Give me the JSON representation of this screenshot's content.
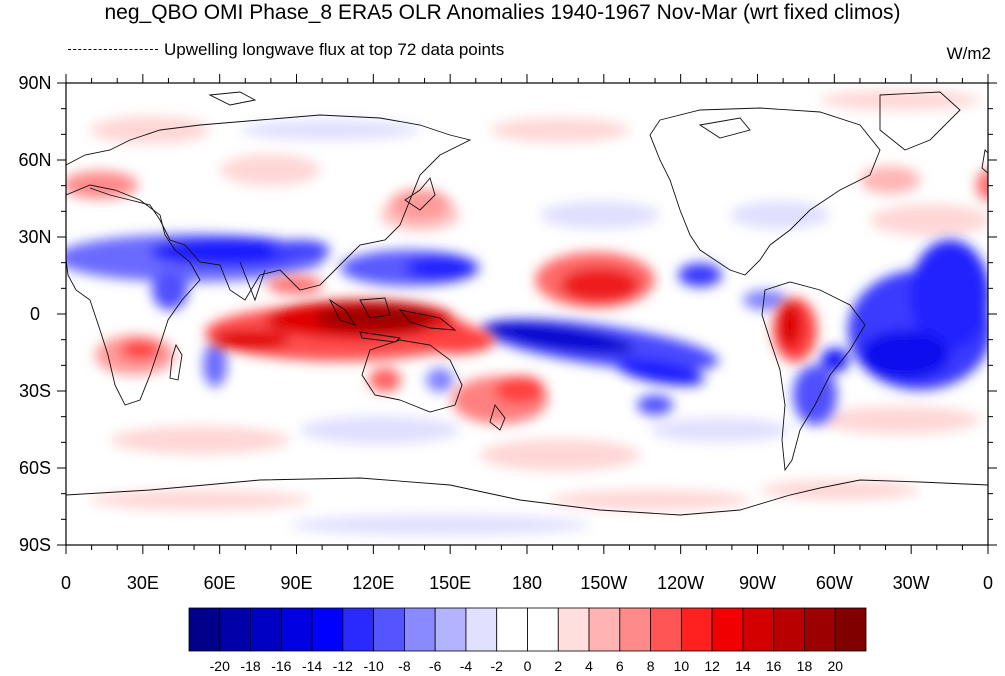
{
  "title": "neg_QBO OMI Phase_8 ERA5 OLR Anomalies 1940-1967 Nov-Mar (wrt fixed climos)",
  "subtitle": "Upwelling longwave flux at top    72 data points",
  "units": "W/m2",
  "lat_labels": [
    "90N",
    "60N",
    "30N",
    "0",
    "30S",
    "60S",
    "90S"
  ],
  "lon_labels": [
    "0",
    "30E",
    "60E",
    "90E",
    "120E",
    "150E",
    "180",
    "150W",
    "120W",
    "90W",
    "60W",
    "30W",
    "0"
  ],
  "colorbar": {
    "labels": [
      "-20",
      "-18",
      "-16",
      "-14",
      "-12",
      "-10",
      "-8",
      "-6",
      "-4",
      "-2",
      "0",
      "2",
      "4",
      "6",
      "8",
      "10",
      "12",
      "14",
      "16",
      "18",
      "20"
    ],
    "colors": [
      "#00008b",
      "#0000a8",
      "#0000c4",
      "#0000e1",
      "#0000ff",
      "#2a2aff",
      "#5555ff",
      "#8a8aff",
      "#b3b3ff",
      "#e1e1ff",
      "#ffffff",
      "#ffffff",
      "#ffdede",
      "#ffb3b3",
      "#ff8a8a",
      "#ff5555",
      "#ff2020",
      "#f00000",
      "#d40000",
      "#b80000",
      "#9c0000",
      "#800000"
    ]
  },
  "chart_data": {
    "type": "heatmap",
    "variable": "OLR anomaly",
    "units": "W/m2",
    "lon_range": [
      0,
      360
    ],
    "lat_range": [
      -90,
      90
    ],
    "value_range": [
      -20,
      20
    ],
    "anomalies": [
      {
        "sign": "positive",
        "lon": [
          60,
          175
        ],
        "lat": [
          -15,
          10
        ],
        "peak": 20
      },
      {
        "sign": "positive",
        "lon": [
          95,
          145
        ],
        "lat": [
          -10,
          8
        ],
        "peak": 22
      },
      {
        "sign": "positive",
        "lon": [
          200,
          245
        ],
        "lat": [
          5,
          25
        ],
        "peak": 14
      },
      {
        "sign": "positive",
        "lon": [
          278,
          295
        ],
        "lat": [
          -25,
          5
        ],
        "peak": 16
      },
      {
        "sign": "positive",
        "lon": [
          150,
          200
        ],
        "lat": [
          -40,
          -20
        ],
        "peak": 10
      },
      {
        "sign": "positive",
        "lon": [
          20,
          60
        ],
        "lat": [
          -30,
          -5
        ],
        "peak": 10
      },
      {
        "sign": "positive",
        "lon": [
          0,
          30
        ],
        "lat": [
          45,
          60
        ],
        "peak": 8
      },
      {
        "sign": "negative",
        "lon": [
          0,
          115
        ],
        "lat": [
          15,
          35
        ],
        "peak": -14
      },
      {
        "sign": "negative",
        "lon": [
          120,
          165
        ],
        "lat": [
          10,
          25
        ],
        "peak": -12
      },
      {
        "sign": "negative",
        "lon": [
          175,
          250
        ],
        "lat": [
          -25,
          -5
        ],
        "peak": -16
      },
      {
        "sign": "negative",
        "lon": [
          300,
          360
        ],
        "lat": [
          -30,
          25
        ],
        "peak": -14
      },
      {
        "sign": "negative",
        "lon": [
          295,
          305
        ],
        "lat": [
          -30,
          -15
        ],
        "peak": -10
      }
    ]
  }
}
